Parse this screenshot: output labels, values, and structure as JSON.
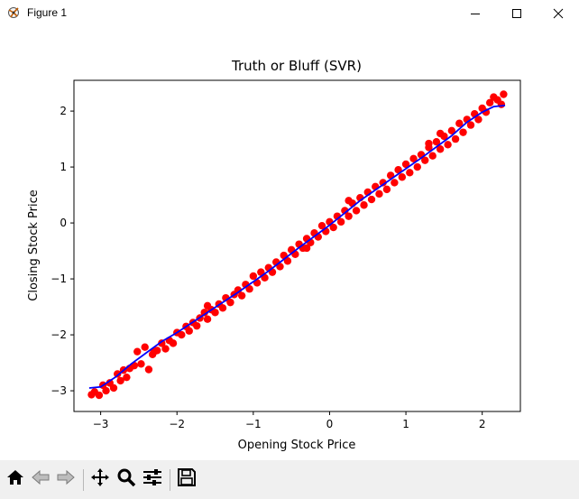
{
  "window": {
    "title": "Figure 1",
    "icons": {
      "app": "matplotlib-figure-icon",
      "minimize": "minimize-icon",
      "maximize": "maximize-icon",
      "close": "close-icon"
    }
  },
  "toolbar": {
    "buttons": [
      {
        "name": "home-button",
        "icon": "home-icon"
      },
      {
        "name": "back-button",
        "icon": "back-arrow-icon"
      },
      {
        "name": "forward-button",
        "icon": "forward-arrow-icon"
      },
      {
        "name": "pan-button",
        "icon": "pan-move-icon"
      },
      {
        "name": "zoom-button",
        "icon": "zoom-magnifier-icon"
      },
      {
        "name": "configure-subplots-button",
        "icon": "sliders-icon"
      },
      {
        "name": "save-button",
        "icon": "floppy-disk-icon"
      }
    ]
  },
  "chart_data": {
    "type": "scatter",
    "title": "Truth or Bluff (SVR)",
    "xlabel": "Opening Stock Price",
    "ylabel": "Closing Stock Price",
    "xlim": [
      -3.35,
      2.5
    ],
    "ylim": [
      -3.37,
      2.55
    ],
    "xticks": [
      -3,
      -2,
      -1,
      0,
      1,
      2
    ],
    "yticks": [
      -3,
      -2,
      -1,
      0,
      1,
      2
    ],
    "grid": false,
    "colors": {
      "scatter": "#ff0000",
      "line": "#0000ff"
    },
    "series": [
      {
        "type": "scatter",
        "points": [
          [
            -3.12,
            -3.07
          ],
          [
            -3.08,
            -3.02
          ],
          [
            -3.02,
            -3.08
          ],
          [
            -2.97,
            -2.9
          ],
          [
            -2.93,
            -3.0
          ],
          [
            -2.88,
            -2.86
          ],
          [
            -2.83,
            -2.95
          ],
          [
            -2.78,
            -2.7
          ],
          [
            -2.74,
            -2.82
          ],
          [
            -2.7,
            -2.63
          ],
          [
            -2.66,
            -2.76
          ],
          [
            -2.62,
            -2.6
          ],
          [
            -2.56,
            -2.55
          ],
          [
            -2.52,
            -2.3
          ],
          [
            -2.47,
            -2.52
          ],
          [
            -2.42,
            -2.22
          ],
          [
            -2.37,
            -2.62
          ],
          [
            -2.32,
            -2.35
          ],
          [
            -2.26,
            -2.28
          ],
          [
            -2.2,
            -2.15
          ],
          [
            -2.15,
            -2.25
          ],
          [
            -2.1,
            -2.1
          ],
          [
            -2.05,
            -2.15
          ],
          [
            -2.0,
            -1.96
          ],
          [
            -1.94,
            -2.0
          ],
          [
            -1.88,
            -1.85
          ],
          [
            -1.84,
            -1.93
          ],
          [
            -1.79,
            -1.78
          ],
          [
            -1.74,
            -1.84
          ],
          [
            -1.7,
            -1.7
          ],
          [
            -1.64,
            -1.6
          ],
          [
            -1.6,
            -1.72
          ],
          [
            -1.55,
            -1.55
          ],
          [
            -1.5,
            -1.6
          ],
          [
            -1.45,
            -1.45
          ],
          [
            -1.4,
            -1.52
          ],
          [
            -1.36,
            -1.34
          ],
          [
            -1.3,
            -1.42
          ],
          [
            -1.25,
            -1.28
          ],
          [
            -1.2,
            -1.2
          ],
          [
            -1.15,
            -1.3
          ],
          [
            -1.1,
            -1.1
          ],
          [
            -1.05,
            -1.18
          ],
          [
            -1.0,
            -0.95
          ],
          [
            -0.95,
            -1.07
          ],
          [
            -0.9,
            -0.88
          ],
          [
            -0.85,
            -0.98
          ],
          [
            -0.8,
            -0.8
          ],
          [
            -0.75,
            -0.88
          ],
          [
            -0.7,
            -0.7
          ],
          [
            -0.65,
            -0.78
          ],
          [
            -0.6,
            -0.58
          ],
          [
            -0.55,
            -0.68
          ],
          [
            -0.5,
            -0.48
          ],
          [
            -0.45,
            -0.56
          ],
          [
            -0.4,
            -0.38
          ],
          [
            -0.35,
            -0.45
          ],
          [
            -0.3,
            -0.28
          ],
          [
            -0.25,
            -0.35
          ],
          [
            -0.2,
            -0.18
          ],
          [
            -0.15,
            -0.25
          ],
          [
            -0.1,
            -0.05
          ],
          [
            -0.05,
            -0.15
          ],
          [
            0.0,
            0.02
          ],
          [
            0.05,
            -0.08
          ],
          [
            0.1,
            0.12
          ],
          [
            0.15,
            0.02
          ],
          [
            0.2,
            0.22
          ],
          [
            0.25,
            0.12
          ],
          [
            0.3,
            0.35
          ],
          [
            0.35,
            0.22
          ],
          [
            0.4,
            0.45
          ],
          [
            0.45,
            0.32
          ],
          [
            0.5,
            0.55
          ],
          [
            0.55,
            0.42
          ],
          [
            0.6,
            0.65
          ],
          [
            0.65,
            0.52
          ],
          [
            0.7,
            0.72
          ],
          [
            0.75,
            0.6
          ],
          [
            0.8,
            0.85
          ],
          [
            0.85,
            0.72
          ],
          [
            0.9,
            0.95
          ],
          [
            0.95,
            0.82
          ],
          [
            1.0,
            1.05
          ],
          [
            1.05,
            0.9
          ],
          [
            1.1,
            1.15
          ],
          [
            1.15,
            1.0
          ],
          [
            1.2,
            1.22
          ],
          [
            1.25,
            1.12
          ],
          [
            1.3,
            1.35
          ],
          [
            1.35,
            1.2
          ],
          [
            1.4,
            1.45
          ],
          [
            1.45,
            1.32
          ],
          [
            1.5,
            1.55
          ],
          [
            1.55,
            1.4
          ],
          [
            1.6,
            1.65
          ],
          [
            1.65,
            1.5
          ],
          [
            1.7,
            1.78
          ],
          [
            1.75,
            1.62
          ],
          [
            1.8,
            1.85
          ],
          [
            1.85,
            1.75
          ],
          [
            1.9,
            1.95
          ],
          [
            1.95,
            1.85
          ],
          [
            2.0,
            2.05
          ],
          [
            2.05,
            1.98
          ],
          [
            2.1,
            2.15
          ],
          [
            2.15,
            2.25
          ],
          [
            2.2,
            2.2
          ],
          [
            2.25,
            2.12
          ],
          [
            2.28,
            2.3
          ],
          [
            1.45,
            1.6
          ],
          [
            1.3,
            1.42
          ],
          [
            0.25,
            0.4
          ],
          [
            -0.3,
            -0.45
          ],
          [
            -1.6,
            -1.48
          ],
          [
            -2.3,
            -2.3
          ]
        ]
      },
      {
        "type": "line",
        "points": [
          [
            -3.15,
            -2.95
          ],
          [
            -3.0,
            -2.93
          ],
          [
            -2.8,
            -2.75
          ],
          [
            -2.6,
            -2.52
          ],
          [
            -2.4,
            -2.32
          ],
          [
            -2.2,
            -2.12
          ],
          [
            -2.0,
            -1.96
          ],
          [
            -1.6,
            -1.6
          ],
          [
            -1.2,
            -1.24
          ],
          [
            -0.8,
            -0.86
          ],
          [
            -0.4,
            -0.44
          ],
          [
            0.0,
            -0.04
          ],
          [
            0.4,
            0.4
          ],
          [
            0.8,
            0.78
          ],
          [
            1.2,
            1.16
          ],
          [
            1.6,
            1.56
          ],
          [
            1.8,
            1.8
          ],
          [
            2.0,
            1.98
          ],
          [
            2.15,
            2.08
          ],
          [
            2.3,
            2.1
          ]
        ]
      }
    ]
  }
}
